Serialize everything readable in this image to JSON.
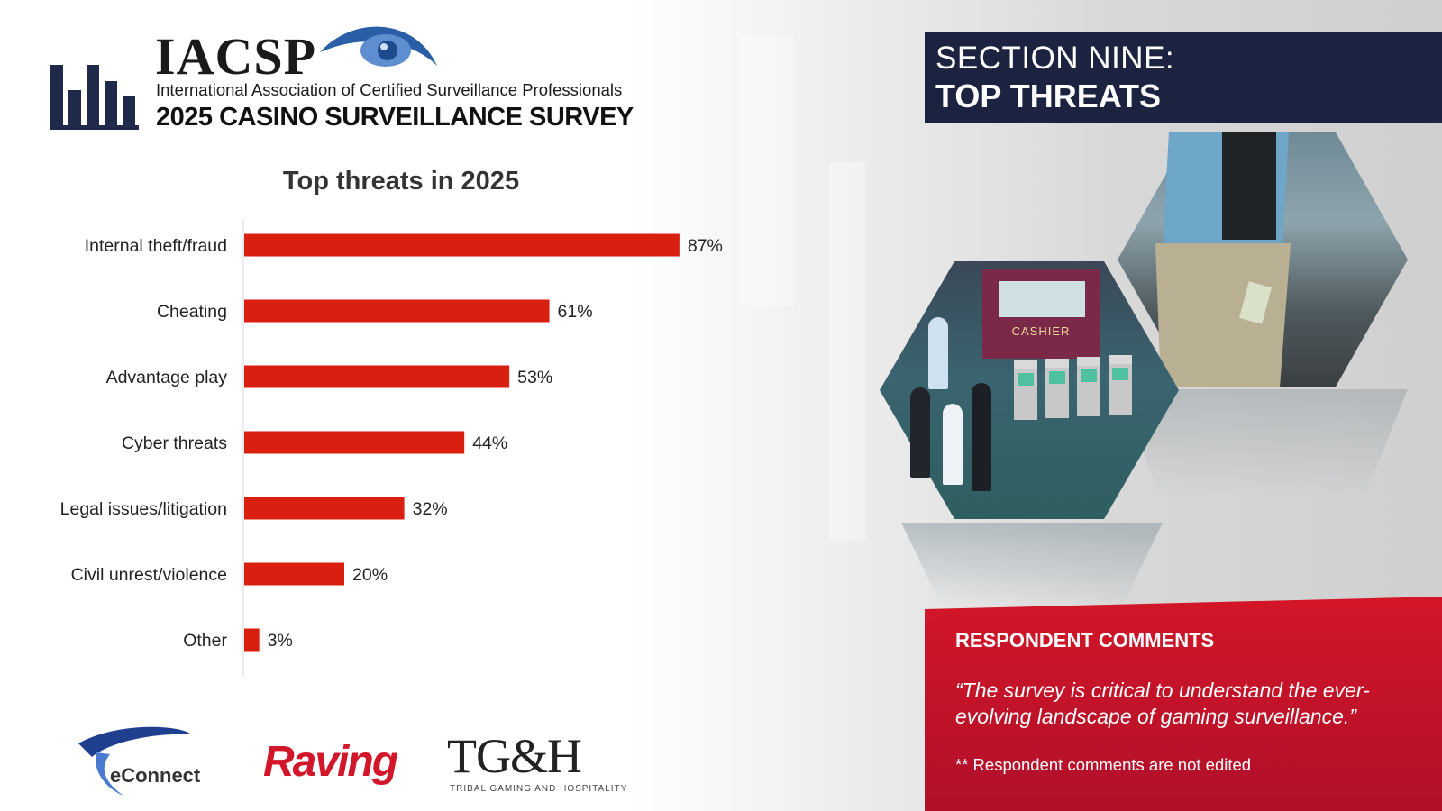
{
  "header": {
    "org_acronym": "IACSP",
    "org_full_name": "International Association of Certified Surveillance Professionals",
    "survey_title": "2025 CASINO SURVEILLANCE SURVEY"
  },
  "section": {
    "line1": "SECTION NINE:",
    "line2": "TOP THREATS"
  },
  "images": {
    "cartoon_sign": "CASHIER"
  },
  "comments": {
    "heading": "RESPONDENT COMMENTS",
    "quote": "“The survey is critical to understand the ever-evolving landscape of gaming surveillance.”",
    "note": "** Respondent comments are not edited"
  },
  "footer": {
    "logos": {
      "econnect": "eConnect",
      "raving": "Raving",
      "tgh": "TG&H",
      "tgh_sub": "TRIBAL GAMING AND HOSPITALITY"
    }
  },
  "colors": {
    "bar": "#d81f10",
    "navy": "#1c2341",
    "red_box": "#c2122a"
  },
  "chart_data": {
    "type": "bar",
    "orientation": "horizontal",
    "title": "Top threats in 2025",
    "categories": [
      "Internal theft/fraud",
      "Cheating",
      "Advantage play",
      "Cyber threats",
      "Legal issues/litigation",
      "Civil unrest/violence",
      "Other"
    ],
    "values": [
      87,
      61,
      53,
      44,
      32,
      20,
      3
    ],
    "value_labels": [
      "87%",
      "61%",
      "53%",
      "44%",
      "32%",
      "20%",
      "3%"
    ],
    "xlim": [
      0,
      100
    ],
    "grid": false,
    "legend": "none"
  }
}
